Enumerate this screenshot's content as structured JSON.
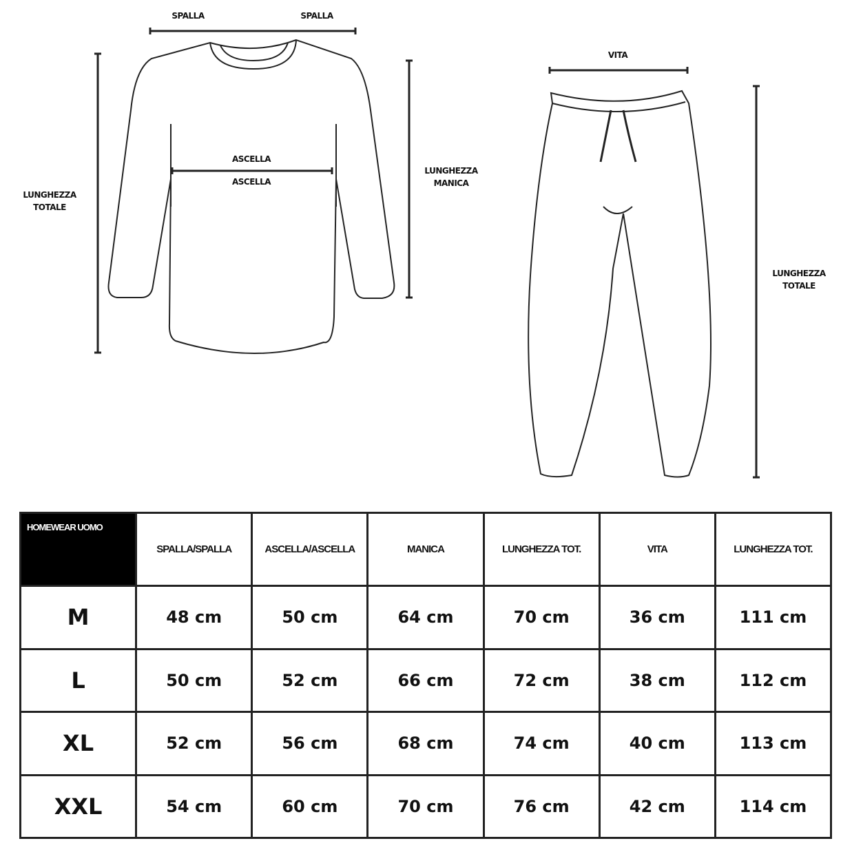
{
  "top_labels": {
    "shoulder_left": "SPALLA",
    "shoulder_right": "SPALLA",
    "armpit_top": "ASCELLA",
    "armpit_bottom": "ASCELLA",
    "top_total_length": "LUNGHEZZA\nTOTALE",
    "sleeve_length": "LUNGHEZZA\nMANICA"
  },
  "bottom_labels": {
    "waist": "VITA",
    "pants_total_length": "LUNGHEZZA\nTOTALE"
  },
  "table": {
    "title": "HOMEWEAR UOMO",
    "headers": [
      "SPALLA/SPALLA",
      "ASCELLA/ASCELLA",
      "MANICA",
      "LUNGHEZZA TOT.",
      "VITA",
      "LUNGHEZZA TOT."
    ],
    "rows": [
      {
        "size": "M",
        "values": [
          "48 cm",
          "50 cm",
          "64 cm",
          "70 cm",
          "36 cm",
          "111 cm"
        ]
      },
      {
        "size": "L",
        "values": [
          "50 cm",
          "52 cm",
          "66 cm",
          "72 cm",
          "38 cm",
          "112 cm"
        ]
      },
      {
        "size": "XL",
        "values": [
          "52 cm",
          "56 cm",
          "68 cm",
          "74 cm",
          "40 cm",
          "113 cm"
        ]
      },
      {
        "size": "XXL",
        "values": [
          "54 cm",
          "60 cm",
          "70 cm",
          "76 cm",
          "42 cm",
          "114 cm"
        ]
      }
    ]
  }
}
